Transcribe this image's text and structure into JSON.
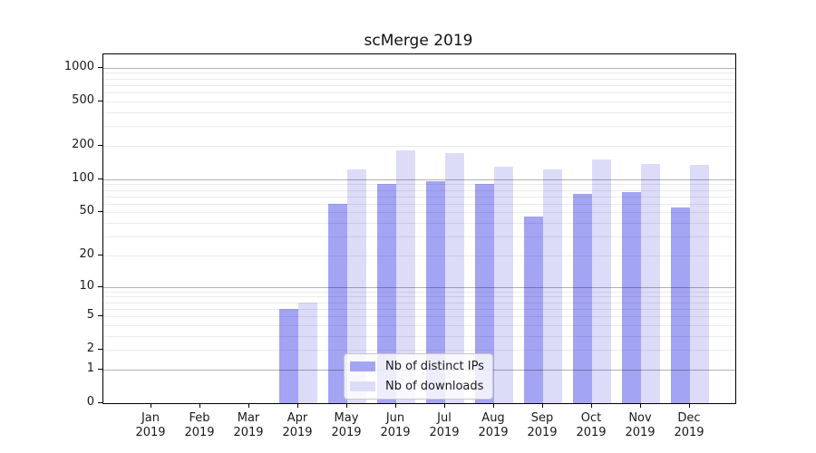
{
  "title": "scMerge 2019",
  "chart_data": {
    "type": "bar",
    "title": "scMerge 2019",
    "categories": [
      "Jan 2019",
      "Feb 2019",
      "Mar 2019",
      "Apr 2019",
      "May 2019",
      "Jun 2019",
      "Jul 2019",
      "Aug 2019",
      "Sep 2019",
      "Oct 2019",
      "Nov 2019",
      "Dec 2019"
    ],
    "series": [
      {
        "name": "Nb of distinct IPs",
        "color": "#a4a4f4",
        "values": [
          0,
          0,
          0,
          6,
          60,
          91,
          96,
          90,
          46,
          74,
          76,
          55
        ]
      },
      {
        "name": "Nb of downloads",
        "color": "#dcdcf9",
        "values": [
          0,
          0,
          0,
          7,
          122,
          182,
          171,
          130,
          123,
          151,
          138,
          134
        ]
      }
    ],
    "yscale": "log1p",
    "yticks": [
      0,
      1,
      2,
      5,
      10,
      20,
      50,
      100,
      200,
      500,
      1000
    ],
    "ylim": [
      0,
      1315
    ],
    "grid": true,
    "legend_position": "lower-center-inside"
  },
  "colors": {
    "axis": "#000000",
    "text": "#1a1a1a",
    "minor_grid": "rgba(0,0,0,0.08)",
    "major_grid": "rgba(0,0,0,0.30)"
  }
}
